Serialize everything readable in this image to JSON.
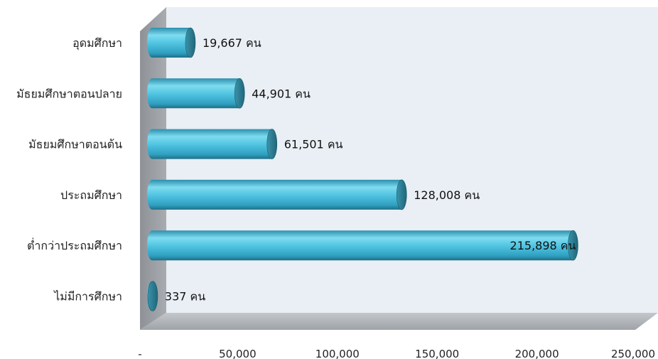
{
  "chart_data": {
    "type": "bar",
    "orientation": "horizontal",
    "style": "3d-cylinder",
    "title": "",
    "xlabel": "",
    "ylabel": "",
    "categories": [
      "อุดมศึกษา",
      "มัธยมศึกษาตอนปลาย",
      "มัธยมศึกษาตอนต้น",
      "ประถมศึกษา",
      "ต่ำกว่าประถมศึกษา",
      "ไม่มีการศึกษา"
    ],
    "values": [
      19667,
      44901,
      61501,
      128008,
      215898,
      337
    ],
    "data_labels": [
      "19,667 คน",
      "44,901 คน",
      "61,501 คน",
      "128,008 คน",
      "215,898 คน",
      "337 คน"
    ],
    "xlim": [
      0,
      250000
    ],
    "x_ticks": [
      0,
      50000,
      100000,
      150000,
      200000,
      250000
    ],
    "x_tick_labels": [
      "-",
      "50,000",
      "100,000",
      "150,000",
      "200,000",
      "250,000"
    ],
    "grid": false,
    "legend": "none",
    "colors": {
      "bar_light": "#7fdcef",
      "bar_mid": "#3fb6d6",
      "bar_dark": "#1d6f86",
      "cap_face": "#2f7f95",
      "back_wall": "#e9eff5",
      "side_wall": "#9a9ea3",
      "floor": "#b5b9bd"
    }
  }
}
